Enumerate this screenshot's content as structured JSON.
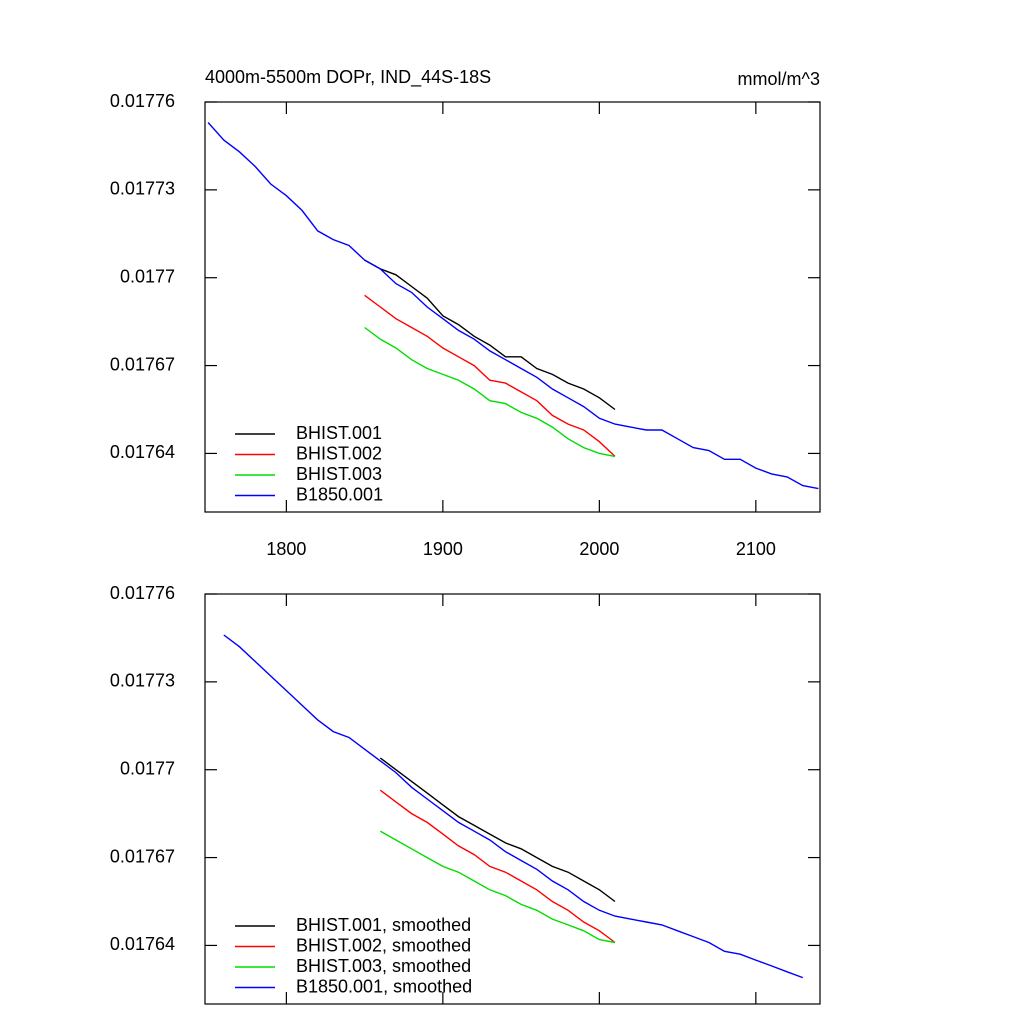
{
  "chart_data": [
    {
      "type": "line",
      "title": "4000m-5500m DOPr, IND_44S-18S",
      "units": "mmol/m^3",
      "x": [
        1750,
        1760,
        1770,
        1780,
        1790,
        1800,
        1810,
        1820,
        1830,
        1840,
        1850,
        1860,
        1870,
        1880,
        1890,
        1900,
        1910,
        1920,
        1930,
        1940,
        1950,
        1960,
        1970,
        1980,
        1990,
        2000,
        2010,
        2020,
        2030,
        2040,
        2050,
        2060,
        2070,
        2080,
        2090,
        2100,
        2110,
        2120,
        2130,
        2140
      ],
      "xlim": [
        1748,
        2141
      ],
      "xticks": [
        1800,
        1900,
        2000,
        2100
      ],
      "ylim": [
        0.01762,
        0.01776
      ],
      "yticks": [
        0.01764,
        0.01767,
        0.0177,
        0.01773,
        0.01776
      ],
      "legend": "lower left",
      "series": [
        {
          "name": "BHIST.001",
          "color": "#000000",
          "values": [
            null,
            null,
            null,
            null,
            null,
            null,
            null,
            null,
            null,
            null,
            0.017706,
            0.017703,
            0.017701,
            0.017697,
            0.017693,
            0.017687,
            0.017684,
            0.01768,
            0.017677,
            0.017673,
            0.017673,
            0.017669,
            0.017667,
            0.017664,
            0.017662,
            0.017659,
            0.017655,
            null,
            null,
            null,
            null,
            null,
            null,
            null,
            null,
            null,
            null,
            null,
            null,
            null
          ]
        },
        {
          "name": "BHIST.002",
          "color": "#ff0000",
          "values": [
            null,
            null,
            null,
            null,
            null,
            null,
            null,
            null,
            null,
            null,
            0.017694,
            0.01769,
            0.017686,
            0.017683,
            0.01768,
            0.017676,
            0.017673,
            0.01767,
            0.017665,
            0.017664,
            0.017661,
            0.017658,
            0.017653,
            0.01765,
            0.017648,
            0.017644,
            0.017639,
            null,
            null,
            null,
            null,
            null,
            null,
            null,
            null,
            null,
            null,
            null,
            null,
            null
          ]
        },
        {
          "name": "BHIST.003",
          "color": "#00dd00",
          "values": [
            null,
            null,
            null,
            null,
            null,
            null,
            null,
            null,
            null,
            null,
            0.017683,
            0.017679,
            0.017676,
            0.017672,
            0.017669,
            0.017667,
            0.017665,
            0.017662,
            0.017658,
            0.017657,
            0.017654,
            0.017652,
            0.017649,
            0.017645,
            0.017642,
            0.01764,
            0.017639,
            null,
            null,
            null,
            null,
            null,
            null,
            null,
            null,
            null,
            null,
            null,
            null,
            null
          ]
        },
        {
          "name": "B1850.001",
          "color": "#0000ff",
          "values": [
            0.017753,
            0.017747,
            0.017743,
            0.017738,
            0.017732,
            0.017728,
            0.017723,
            0.017716,
            0.017713,
            0.017711,
            0.017706,
            0.017703,
            0.017698,
            0.017695,
            0.01769,
            0.017686,
            0.017682,
            0.017679,
            0.017675,
            0.017672,
            0.017669,
            0.017666,
            0.017662,
            0.017659,
            0.017656,
            0.017652,
            0.01765,
            0.017649,
            0.017648,
            0.017648,
            0.017645,
            0.017642,
            0.017641,
            0.017638,
            0.017638,
            0.017635,
            0.017633,
            0.017632,
            0.017629,
            0.017628
          ]
        }
      ]
    },
    {
      "type": "line",
      "x": [
        1750,
        1760,
        1770,
        1780,
        1790,
        1800,
        1810,
        1820,
        1830,
        1840,
        1850,
        1860,
        1870,
        1880,
        1890,
        1900,
        1910,
        1920,
        1930,
        1940,
        1950,
        1960,
        1970,
        1980,
        1990,
        2000,
        2010,
        2020,
        2030,
        2040,
        2050,
        2060,
        2070,
        2080,
        2090,
        2100,
        2110,
        2120,
        2130,
        2140
      ],
      "xlim": [
        1748,
        2141
      ],
      "ylim": [
        0.01762,
        0.01776
      ],
      "yticks": [
        0.01764,
        0.01767,
        0.0177,
        0.01773,
        0.01776
      ],
      "legend": "lower left",
      "series": [
        {
          "name": "BHIST.001, smoothed",
          "color": "#000000",
          "values": [
            null,
            null,
            null,
            null,
            null,
            null,
            null,
            null,
            null,
            null,
            null,
            0.017704,
            0.0177,
            0.017696,
            0.017692,
            0.017688,
            0.017684,
            0.017681,
            0.017678,
            0.017675,
            0.017673,
            0.01767,
            0.017667,
            0.017665,
            0.017662,
            0.017659,
            0.017655,
            null,
            null,
            null,
            null,
            null,
            null,
            null,
            null,
            null,
            null,
            null,
            null,
            null
          ]
        },
        {
          "name": "BHIST.002, smoothed",
          "color": "#ff0000",
          "values": [
            null,
            null,
            null,
            null,
            null,
            null,
            null,
            null,
            null,
            null,
            null,
            0.017693,
            0.017689,
            0.017685,
            0.017682,
            0.017678,
            0.017674,
            0.017671,
            0.017667,
            0.017665,
            0.017662,
            0.017659,
            0.017655,
            0.017652,
            0.017648,
            0.017645,
            0.017641,
            null,
            null,
            null,
            null,
            null,
            null,
            null,
            null,
            null,
            null,
            null,
            null,
            null
          ]
        },
        {
          "name": "BHIST.003, smoothed",
          "color": "#00dd00",
          "values": [
            null,
            null,
            null,
            null,
            null,
            null,
            null,
            null,
            null,
            null,
            null,
            0.017679,
            0.017676,
            0.017673,
            0.01767,
            0.017667,
            0.017665,
            0.017662,
            0.017659,
            0.017657,
            0.017654,
            0.017652,
            0.017649,
            0.017647,
            0.017645,
            0.017642,
            0.017641,
            null,
            null,
            null,
            null,
            null,
            null,
            null,
            null,
            null,
            null,
            null,
            null,
            null
          ]
        },
        {
          "name": "B1850.001, smoothed",
          "color": "#0000ff",
          "values": [
            null,
            0.017746,
            0.017742,
            0.017737,
            0.017732,
            0.017727,
            0.017722,
            0.017717,
            0.017713,
            0.017711,
            0.017707,
            0.017703,
            0.017699,
            0.017694,
            0.01769,
            0.017686,
            0.017682,
            0.017679,
            0.017676,
            0.017672,
            0.017669,
            0.017666,
            0.017662,
            0.017659,
            0.017655,
            0.017652,
            0.01765,
            0.017649,
            0.017648,
            0.017647,
            0.017645,
            0.017643,
            0.017641,
            0.017638,
            0.017637,
            0.017635,
            0.017633,
            0.017631,
            0.017629,
            null
          ]
        }
      ]
    }
  ]
}
